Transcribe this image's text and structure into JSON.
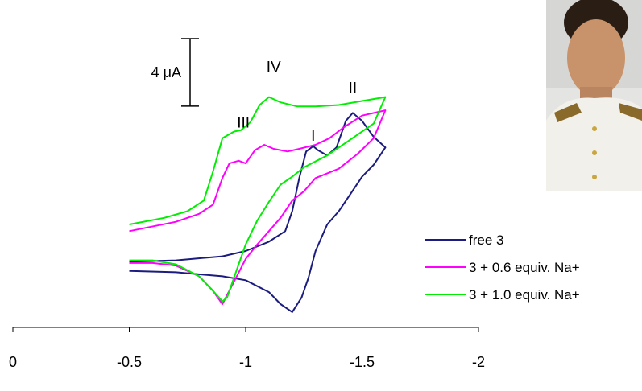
{
  "chart_data": {
    "type": "line",
    "title": "",
    "xlabel": "",
    "ylabel": "",
    "xlim": [
      0,
      -2
    ],
    "x_ticks": [
      "0",
      "-0.5",
      "-1",
      "-1.5",
      "-2"
    ],
    "x_tick_values": [
      0,
      -0.5,
      -1,
      -1.5,
      -2
    ],
    "grid": false,
    "legend_placement": "bottom-right",
    "scale_bar": {
      "label": "4 μA",
      "value_uA": 4
    },
    "peak_labels": [
      {
        "text": "I",
        "x": -1.29,
        "y_uA": 10.3
      },
      {
        "text": "II",
        "x": -1.46,
        "y_uA": 13.9
      },
      {
        "text": "III",
        "x": -0.99,
        "y_uA": 11.3
      },
      {
        "text": "IV",
        "x": -1.12,
        "y_uA": 15.5
      }
    ],
    "series": [
      {
        "name": "free 3",
        "color": "#1c1c80",
        "points": [
          [
            -0.5,
            1.2
          ],
          [
            -0.7,
            1.3
          ],
          [
            -0.9,
            1.6
          ],
          [
            -1.0,
            2.0
          ],
          [
            -1.1,
            2.7
          ],
          [
            -1.17,
            3.5
          ],
          [
            -1.2,
            5.0
          ],
          [
            -1.23,
            7.5
          ],
          [
            -1.26,
            9.5
          ],
          [
            -1.29,
            9.9
          ],
          [
            -1.31,
            9.6
          ],
          [
            -1.35,
            9.2
          ],
          [
            -1.39,
            9.8
          ],
          [
            -1.43,
            11.8
          ],
          [
            -1.46,
            12.4
          ],
          [
            -1.5,
            11.8
          ],
          [
            -1.55,
            10.6
          ],
          [
            -1.6,
            9.8
          ],
          [
            -1.55,
            8.5
          ],
          [
            -1.5,
            7.6
          ],
          [
            -1.45,
            6.3
          ],
          [
            -1.4,
            5.0
          ],
          [
            -1.35,
            4.0
          ],
          [
            -1.3,
            2.0
          ],
          [
            -1.27,
            0.0
          ],
          [
            -1.24,
            -1.5
          ],
          [
            -1.2,
            -2.6
          ],
          [
            -1.15,
            -2.0
          ],
          [
            -1.1,
            -1.1
          ],
          [
            -1.0,
            -0.2
          ],
          [
            -0.9,
            0.1
          ],
          [
            -0.7,
            0.4
          ],
          [
            -0.5,
            0.5
          ]
        ]
      },
      {
        "name": "3 + 0.6 equiv. Na+",
        "color": "#ff00ff",
        "points": [
          [
            -0.5,
            3.5
          ],
          [
            -0.7,
            4.2
          ],
          [
            -0.8,
            4.8
          ],
          [
            -0.86,
            5.5
          ],
          [
            -0.9,
            7.5
          ],
          [
            -0.93,
            8.6
          ],
          [
            -0.97,
            8.8
          ],
          [
            -1.0,
            8.6
          ],
          [
            -1.04,
            9.6
          ],
          [
            -1.08,
            10.0
          ],
          [
            -1.12,
            9.7
          ],
          [
            -1.18,
            9.5
          ],
          [
            -1.23,
            9.7
          ],
          [
            -1.3,
            10.0
          ],
          [
            -1.36,
            10.5
          ],
          [
            -1.42,
            11.3
          ],
          [
            -1.5,
            12.2
          ],
          [
            -1.6,
            12.6
          ],
          [
            -1.55,
            10.5
          ],
          [
            -1.48,
            9.3
          ],
          [
            -1.4,
            8.2
          ],
          [
            -1.3,
            7.5
          ],
          [
            -1.25,
            6.5
          ],
          [
            -1.2,
            5.8
          ],
          [
            -1.15,
            4.5
          ],
          [
            -1.1,
            3.5
          ],
          [
            -1.05,
            2.5
          ],
          [
            -1.0,
            1.4
          ],
          [
            -0.95,
            -0.3
          ],
          [
            -0.9,
            -2.0
          ],
          [
            -0.86,
            -1.0
          ],
          [
            -0.8,
            0.1
          ],
          [
            -0.7,
            0.9
          ],
          [
            -0.6,
            1.1
          ],
          [
            -0.5,
            1.1
          ]
        ]
      },
      {
        "name": "3 + 1.0 equiv. Na+",
        "color": "#00ee00",
        "points": [
          [
            -0.5,
            4.0
          ],
          [
            -0.65,
            4.5
          ],
          [
            -0.75,
            5.0
          ],
          [
            -0.82,
            5.8
          ],
          [
            -0.86,
            8.0
          ],
          [
            -0.9,
            10.5
          ],
          [
            -0.95,
            11.0
          ],
          [
            -0.98,
            11.1
          ],
          [
            -1.02,
            11.7
          ],
          [
            -1.06,
            13.0
          ],
          [
            -1.1,
            13.6
          ],
          [
            -1.15,
            13.2
          ],
          [
            -1.22,
            12.9
          ],
          [
            -1.3,
            12.9
          ],
          [
            -1.4,
            13.0
          ],
          [
            -1.5,
            13.3
          ],
          [
            -1.6,
            13.6
          ],
          [
            -1.55,
            11.6
          ],
          [
            -1.45,
            10.4
          ],
          [
            -1.35,
            9.2
          ],
          [
            -1.25,
            8.3
          ],
          [
            -1.2,
            7.6
          ],
          [
            -1.15,
            7.0
          ],
          [
            -1.1,
            5.7
          ],
          [
            -1.05,
            4.3
          ],
          [
            -1.0,
            2.5
          ],
          [
            -0.96,
            0.5
          ],
          [
            -0.92,
            -1.5
          ],
          [
            -0.9,
            -1.8
          ],
          [
            -0.86,
            -1.0
          ],
          [
            -0.8,
            0.1
          ],
          [
            -0.7,
            1.0
          ],
          [
            -0.6,
            1.3
          ],
          [
            -0.5,
            1.3
          ]
        ]
      }
    ]
  }
}
